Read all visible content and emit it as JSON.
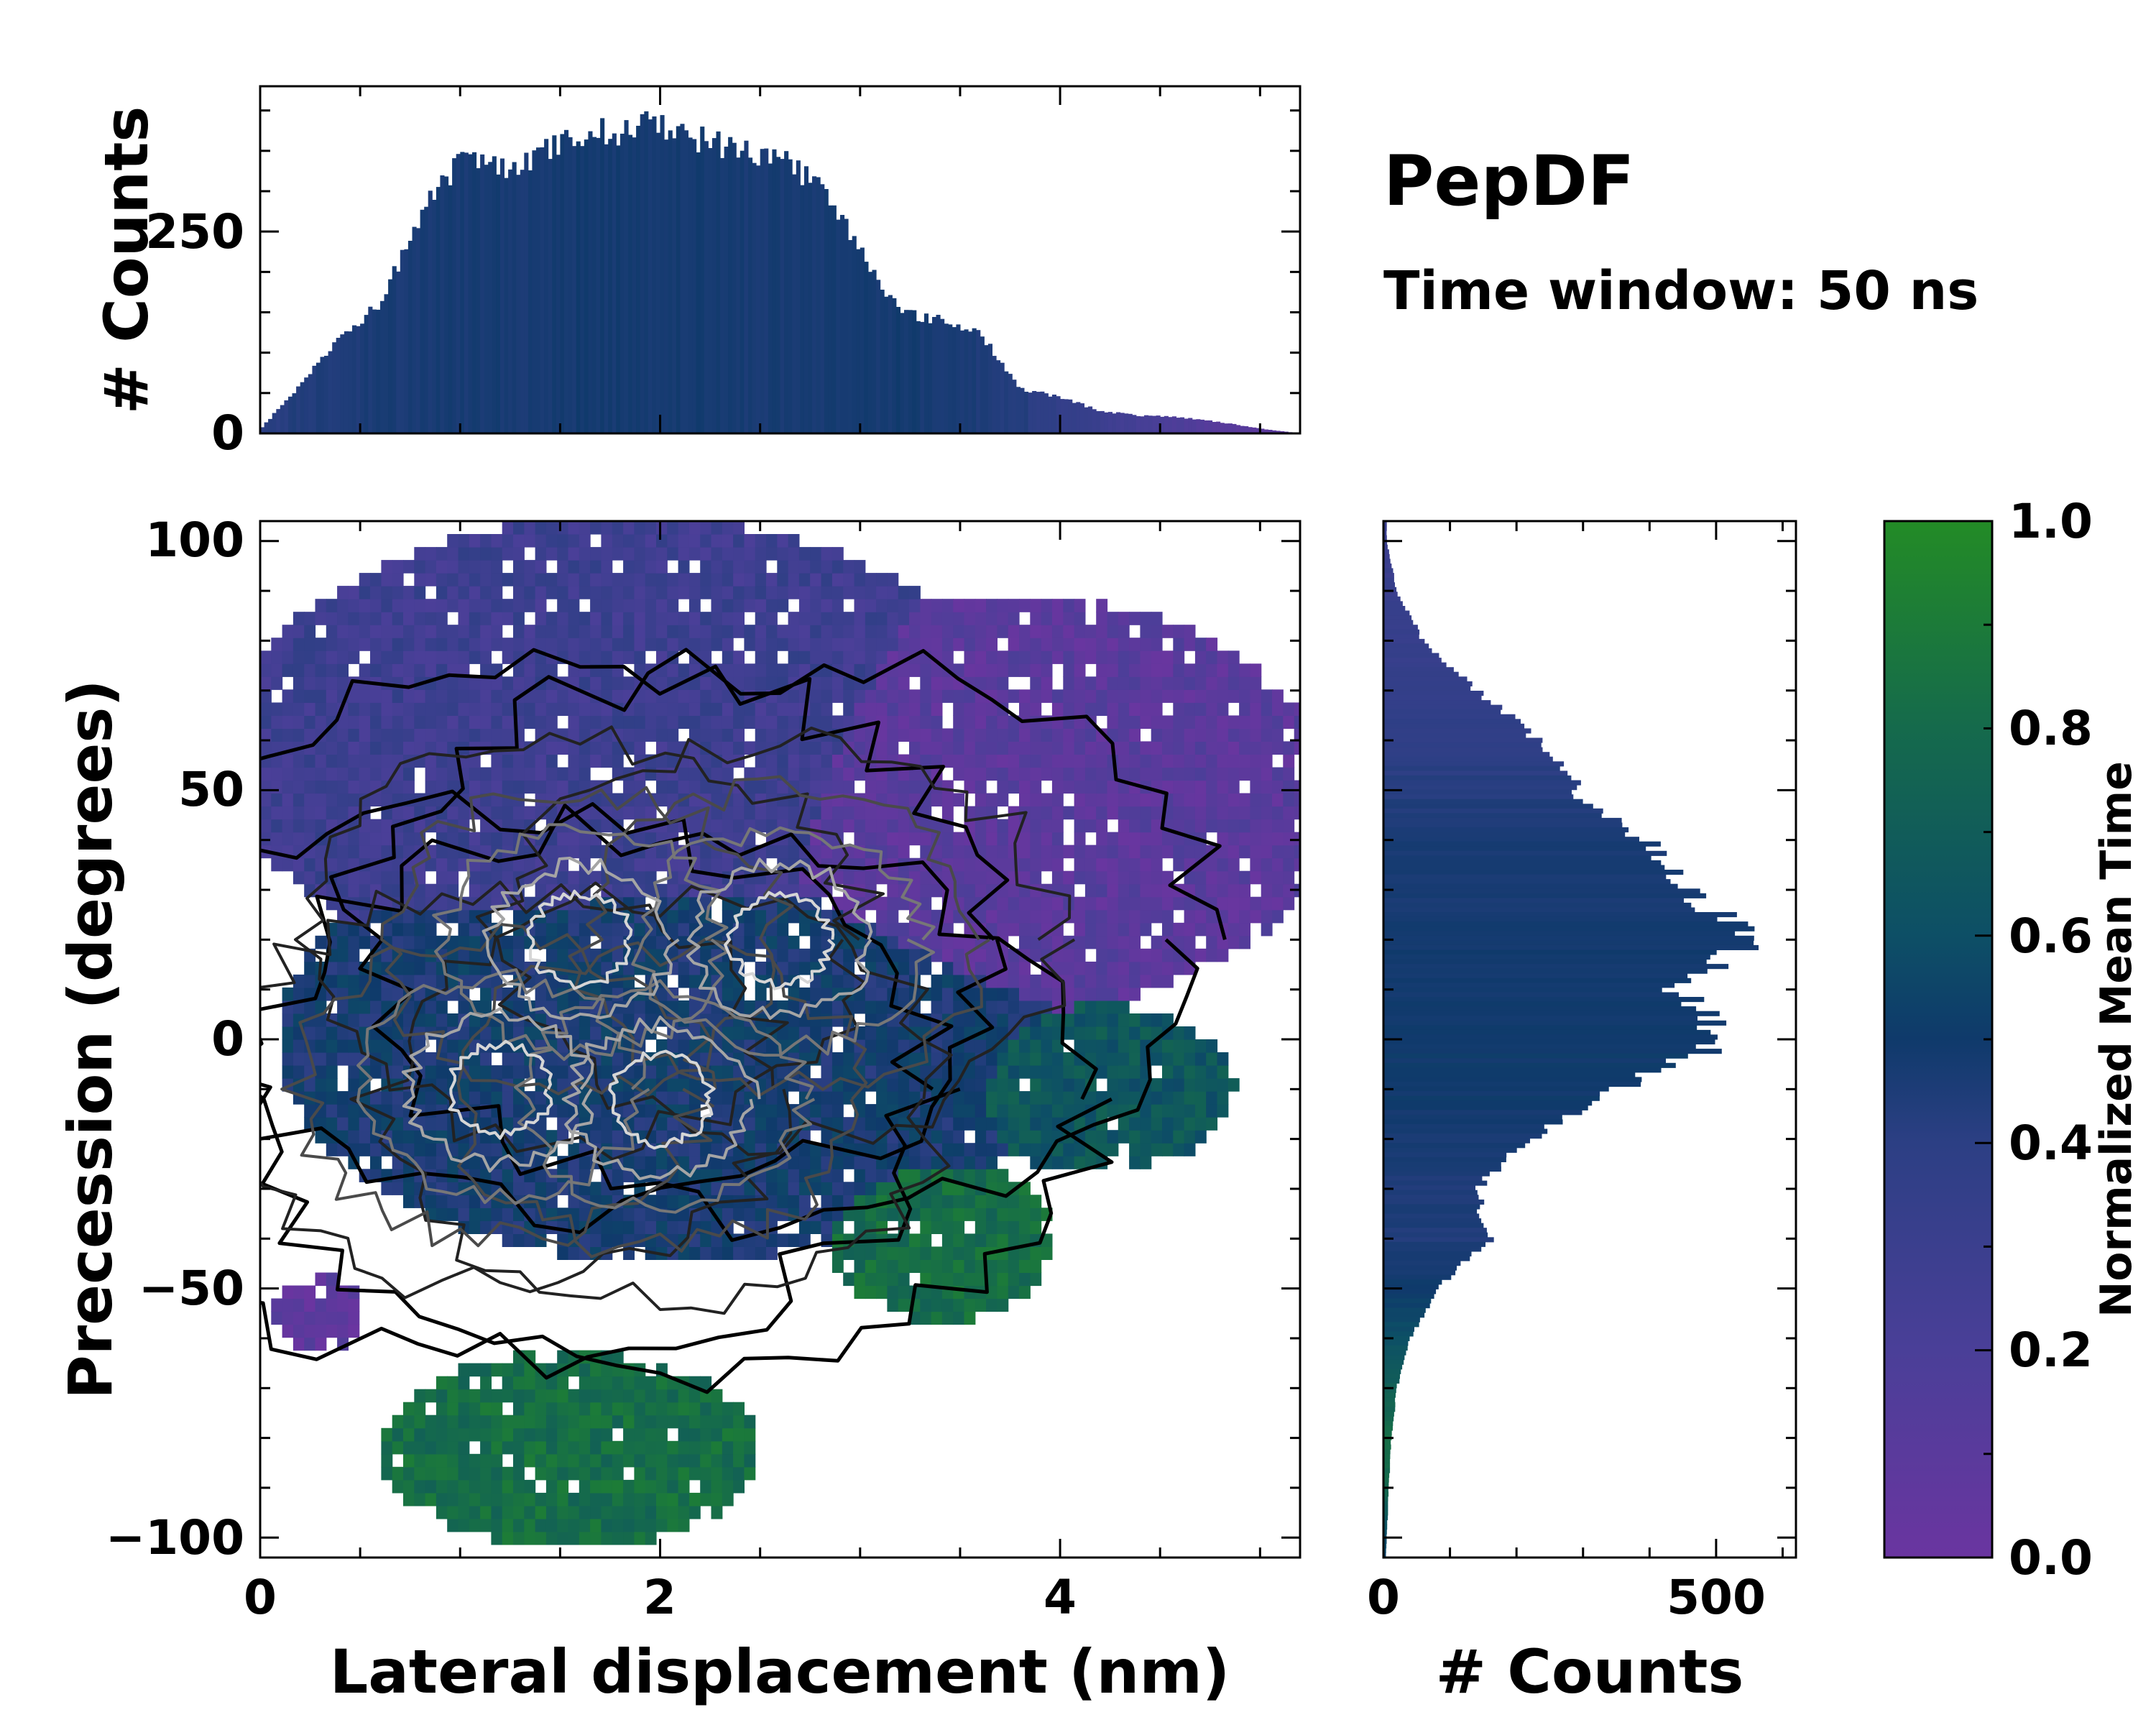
{
  "title": "PepDF",
  "subtitle": "Time window: 50 ns",
  "chart_data": [
    {
      "type": "heatmap",
      "name": "main-2d-histogram",
      "xlabel": "Lateral displacement (nm)",
      "ylabel": "Precession (degrees)",
      "xlim": [
        0,
        5.2
      ],
      "ylim": [
        -104,
        104
      ],
      "xticks": [
        0,
        2,
        4
      ],
      "xtick_labels": [
        "0",
        "2",
        "4"
      ],
      "yticks": [
        -100,
        -50,
        0,
        50,
        100
      ],
      "ytick_labels": [
        "−100",
        "−50",
        "0",
        "50",
        "100"
      ],
      "color_by": "Normalized Mean Time",
      "regions": [
        {
          "label": "upper-left blue-violet",
          "x": [
            0.05,
            3.6
          ],
          "y": [
            15,
            100
          ],
          "mean_time": 0.28
        },
        {
          "label": "upper-right violet",
          "x": [
            2.2,
            5.2
          ],
          "y": [
            10,
            85
          ],
          "mean_time": 0.1
        },
        {
          "label": "central navy core",
          "x": [
            0.3,
            3.8
          ],
          "y": [
            -40,
            40
          ],
          "mean_time": 0.48
        },
        {
          "label": "right teal lobe",
          "x": [
            3.6,
            4.8
          ],
          "y": [
            -25,
            5
          ],
          "mean_time": 0.66
        },
        {
          "label": "lower-right green",
          "x": [
            2.9,
            3.9
          ],
          "y": [
            -55,
            -25
          ],
          "mean_time": 0.82
        },
        {
          "label": "bottom green tail",
          "x": [
            0.7,
            2.4
          ],
          "y": [
            -100,
            -65
          ],
          "mean_time": 0.82
        },
        {
          "label": "small violet island",
          "x": [
            0.1,
            0.5
          ],
          "y": [
            -62,
            -48
          ],
          "mean_time": 0.08
        }
      ],
      "density_peaks": [
        {
          "x": 1.6,
          "y": 20
        },
        {
          "x": 2.6,
          "y": 20
        },
        {
          "x": 1.2,
          "y": -10
        },
        {
          "x": 2.0,
          "y": -12
        }
      ]
    },
    {
      "type": "bar",
      "name": "top-marginal-histogram",
      "ylabel": "# Counts",
      "xlim": [
        0,
        5.2
      ],
      "ylim": [
        0,
        430
      ],
      "yticks": [
        0,
        250
      ],
      "ytick_labels": [
        "0",
        "250"
      ],
      "x": [
        0.0,
        0.2,
        0.4,
        0.6,
        0.8,
        1.0,
        1.2,
        1.4,
        1.6,
        1.8,
        2.0,
        2.2,
        2.4,
        2.6,
        2.8,
        3.0,
        3.2,
        3.4,
        3.6,
        3.8,
        4.0,
        4.2,
        4.4,
        4.6,
        4.8,
        5.0,
        5.2
      ],
      "values": [
        5,
        60,
        120,
        160,
        270,
        340,
        330,
        345,
        370,
        375,
        385,
        365,
        350,
        345,
        305,
        230,
        150,
        140,
        125,
        55,
        45,
        28,
        22,
        20,
        14,
        6,
        0
      ],
      "color_values": [
        0.4,
        0.44,
        0.45,
        0.46,
        0.47,
        0.47,
        0.47,
        0.47,
        0.48,
        0.48,
        0.48,
        0.48,
        0.47,
        0.47,
        0.47,
        0.48,
        0.48,
        0.47,
        0.45,
        0.43,
        0.36,
        0.3,
        0.22,
        0.18,
        0.12,
        0.1,
        0.1
      ]
    },
    {
      "type": "bar",
      "name": "right-marginal-histogram",
      "orientation": "horizontal",
      "xlabel": "# Counts",
      "xlim": [
        0,
        620
      ],
      "xticks": [
        0,
        500
      ],
      "xtick_labels": [
        "0",
        "500"
      ],
      "ylim": [
        -104,
        104
      ],
      "y": [
        100,
        90,
        80,
        70,
        60,
        50,
        40,
        30,
        20,
        10,
        0,
        -10,
        -20,
        -30,
        -40,
        -50,
        -60,
        -70,
        -80,
        -90,
        -100
      ],
      "values": [
        5,
        20,
        60,
        140,
        230,
        290,
        390,
        450,
        560,
        440,
        520,
        350,
        220,
        140,
        160,
        80,
        40,
        20,
        12,
        8,
        5
      ],
      "color_values": [
        0.3,
        0.32,
        0.33,
        0.35,
        0.38,
        0.42,
        0.46,
        0.47,
        0.48,
        0.49,
        0.5,
        0.5,
        0.47,
        0.45,
        0.44,
        0.5,
        0.6,
        0.72,
        0.82,
        0.78,
        0.6
      ]
    },
    {
      "type": "colorbar",
      "name": "colorbar",
      "label": "Normalized Mean Time",
      "range": [
        0,
        1
      ],
      "ticks": [
        0.0,
        0.2,
        0.4,
        0.6,
        0.8,
        1.0
      ],
      "tick_labels": [
        "0.0",
        "0.2",
        "0.4",
        "0.6",
        "0.8",
        "1.0"
      ],
      "colormap": [
        {
          "stop": 0.0,
          "color": "#6a35a0"
        },
        {
          "stop": 0.2,
          "color": "#4a3f98"
        },
        {
          "stop": 0.4,
          "color": "#2c3f84"
        },
        {
          "stop": 0.5,
          "color": "#0f3a6b"
        },
        {
          "stop": 0.6,
          "color": "#0d4f66"
        },
        {
          "stop": 0.8,
          "color": "#156a4c"
        },
        {
          "stop": 1.0,
          "color": "#238b26"
        }
      ]
    }
  ]
}
